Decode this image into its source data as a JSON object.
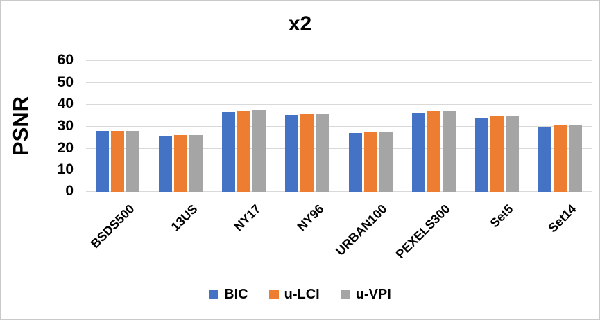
{
  "chart_data": {
    "type": "bar",
    "title": "x2",
    "ylabel": "PSNR",
    "xlabel": "",
    "categories": [
      "BSDS500",
      "13US",
      "NY17",
      "NY96",
      "URBAN100",
      "PEXELS300",
      "Set5",
      "Set14"
    ],
    "series": [
      {
        "name": "BIC",
        "color": "#4472C4",
        "values": [
          27.7,
          25.6,
          36.4,
          35.2,
          26.9,
          36.1,
          33.5,
          29.8
        ]
      },
      {
        "name": "u-LCI",
        "color": "#ED7D31",
        "values": [
          27.9,
          26.0,
          37.1,
          35.6,
          27.5,
          36.9,
          34.4,
          30.3
        ]
      },
      {
        "name": "u-VPI",
        "color": "#A5A5A5",
        "values": [
          27.8,
          25.9,
          37.2,
          35.5,
          27.5,
          36.8,
          34.4,
          30.3
        ]
      }
    ],
    "ylim": [
      0,
      60
    ],
    "yticks": [
      0,
      10,
      20,
      30,
      40,
      50,
      60
    ],
    "grid": "horizontal",
    "gridline_color": "#D9D9D9",
    "axis_line_color": "#D9D9D9",
    "chart_border_color": "#C9C9C9",
    "legend_position": "bottom"
  }
}
